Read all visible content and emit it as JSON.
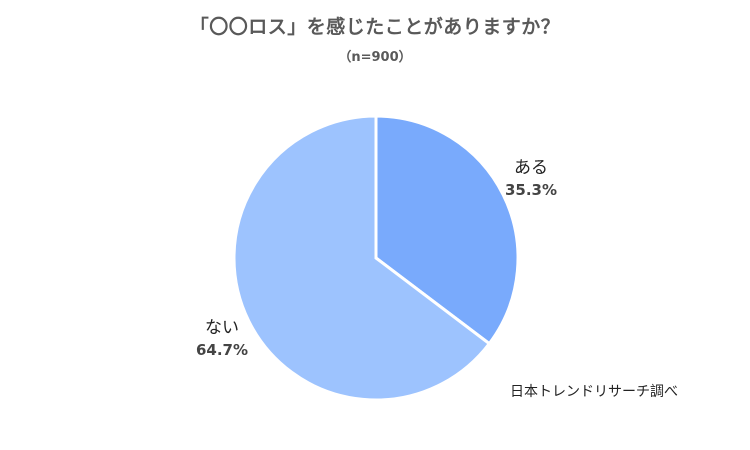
{
  "title": "「〇〇ロス」を感じたことがありますか？",
  "subtitle": "（n=900）",
  "source": "日本トレンドリサーチ調べ",
  "chart_data": {
    "type": "pie",
    "title": "「〇〇ロス」を感じたことがありますか？",
    "subtitle": "（n=900）",
    "slices": [
      {
        "label": "ある",
        "value": 35.3,
        "value_label": "35.3%",
        "color": "#79aafc"
      },
      {
        "label": "ない",
        "value": 64.7,
        "value_label": "64.7%",
        "color": "#9dc3fe"
      }
    ],
    "start": "12 o'clock",
    "direction": "clockwise",
    "legend": "none"
  }
}
